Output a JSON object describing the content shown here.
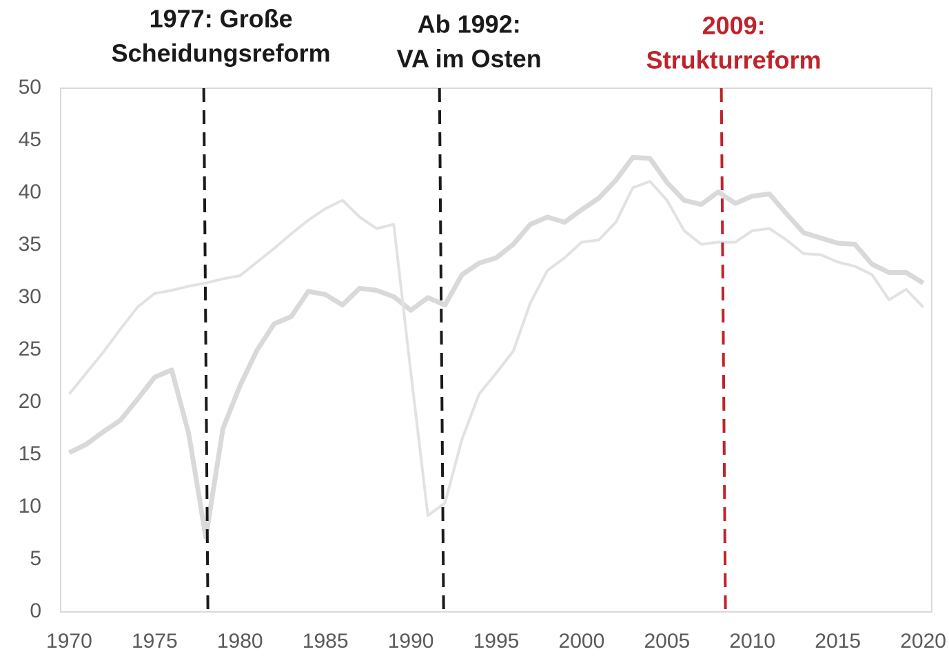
{
  "chart_data": {
    "type": "line",
    "x": [
      1970,
      1971,
      1972,
      1973,
      1974,
      1975,
      1976,
      1977,
      1978,
      1979,
      1980,
      1981,
      1982,
      1983,
      1984,
      1985,
      1986,
      1987,
      1988,
      1989,
      1990,
      1991,
      1992,
      1993,
      1994,
      1995,
      1996,
      1997,
      1998,
      1999,
      2000,
      2001,
      2002,
      2003,
      2004,
      2005,
      2006,
      2007,
      2008,
      2009,
      2010,
      2011,
      2012,
      2013,
      2014,
      2015,
      2016,
      2017,
      2018,
      2019,
      2020
    ],
    "series": [
      {
        "color": "#d9d9d9",
        "width": 7,
        "values": [
          15.2,
          16.0,
          17.2,
          18.3,
          20.3,
          22.4,
          23.1,
          17.0,
          7.1,
          17.5,
          21.6,
          25.0,
          27.5,
          28.2,
          30.6,
          30.3,
          29.3,
          30.9,
          30.7,
          30.1,
          28.8,
          30.0,
          29.3,
          32.2,
          33.3,
          33.8,
          35.1,
          37.0,
          37.7,
          37.2,
          38.4,
          39.5,
          41.2,
          43.4,
          43.3,
          41.0,
          39.3,
          38.9,
          40.1,
          39.0,
          39.7,
          39.9,
          38.0,
          36.2,
          35.7,
          35.2,
          35.1,
          33.2,
          32.4,
          32.4,
          31.4
        ]
      },
      {
        "color": "#e2e2e2",
        "width": 4,
        "values": [
          20.8,
          22.8,
          24.8,
          27.0,
          29.1,
          30.4,
          30.7,
          31.1,
          31.4,
          31.8,
          32.1,
          33.4,
          34.7,
          36.1,
          37.4,
          38.5,
          39.3,
          37.7,
          36.6,
          37.0,
          22.9,
          9.2,
          10.4,
          16.5,
          20.8,
          22.8,
          24.9,
          29.5,
          32.6,
          33.8,
          35.3,
          35.5,
          37.2,
          40.5,
          41.1,
          39.3,
          36.4,
          35.1,
          35.3,
          35.3,
          36.4,
          36.6,
          35.5,
          34.2,
          34.1,
          33.4,
          33.0,
          32.2,
          29.8,
          30.8,
          29.1
        ]
      }
    ],
    "annotations": [
      {
        "x": 1978,
        "label": [
          "1977: Große",
          "Scheidungsreform"
        ],
        "color": "#1a1a1a"
      },
      {
        "x": 1991.8,
        "label": [
          "Ab 1992:",
          "VA im Osten"
        ],
        "color": "#1a1a1a"
      },
      {
        "x": 2008.3,
        "label": [
          "2009:",
          "Strukturreform"
        ],
        "color": "#c0232b"
      }
    ],
    "xlim": [
      1969.5,
      2020.5
    ],
    "xticks": [
      1970,
      1975,
      1980,
      1985,
      1990,
      1995,
      2000,
      2005,
      2010,
      2015,
      2020
    ],
    "ylim": [
      0,
      50
    ],
    "yticks": [
      0,
      5,
      10,
      15,
      20,
      25,
      30,
      35,
      40,
      45,
      50
    ]
  }
}
